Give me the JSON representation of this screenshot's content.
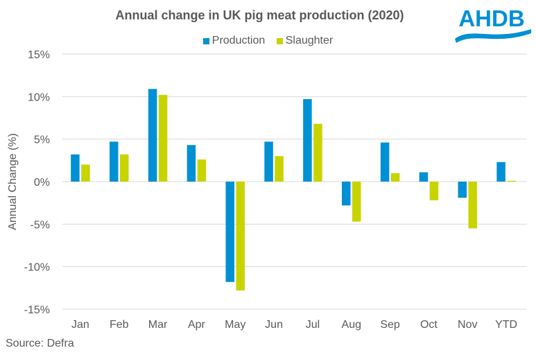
{
  "chart_data": {
    "type": "bar",
    "title": "Annual change in UK pig meat production (2020)",
    "xlabel": "",
    "ylabel": "Annual Change (%)",
    "categories": [
      "Jan",
      "Feb",
      "Mar",
      "Apr",
      "May",
      "Jun",
      "Jul",
      "Aug",
      "Sep",
      "Oct",
      "Nov",
      "YTD"
    ],
    "series": [
      {
        "name": "Production",
        "color": "#0090D4",
        "values": [
          3.2,
          4.7,
          10.9,
          4.3,
          -11.8,
          4.7,
          9.7,
          -2.8,
          4.6,
          1.1,
          -1.9,
          2.3
        ]
      },
      {
        "name": "Slaughter",
        "color": "#C8D400",
        "values": [
          2.0,
          3.2,
          10.2,
          2.6,
          -12.8,
          3.0,
          6.8,
          -4.7,
          1.0,
          -2.2,
          -5.5,
          0.1
        ]
      }
    ],
    "ylim": [
      -15,
      15
    ],
    "yticks": [
      15,
      10,
      5,
      0,
      -5,
      -10,
      -15
    ],
    "ytick_labels": [
      "15%",
      "10%",
      "5%",
      "0%",
      "-5%",
      "-10%",
      "-15%"
    ],
    "grid": true,
    "legend_position": "top-center"
  },
  "source": "Source: Defra",
  "logo": {
    "text": "AHDB",
    "color": "#0090D4"
  }
}
